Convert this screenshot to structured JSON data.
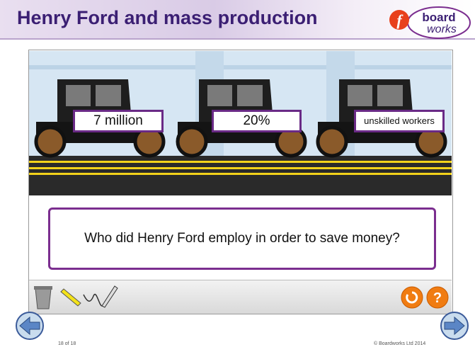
{
  "header": {
    "title": "Henry Ford and mass production",
    "logo": [
      "board",
      "works"
    ]
  },
  "labels": [
    "7 million",
    "20%",
    "unskilled workers"
  ],
  "question": "Who did Henry Ford employ in order to save money?",
  "footer": {
    "page": "18 of 18",
    "copyright": "© Boardworks Ltd 2014"
  }
}
